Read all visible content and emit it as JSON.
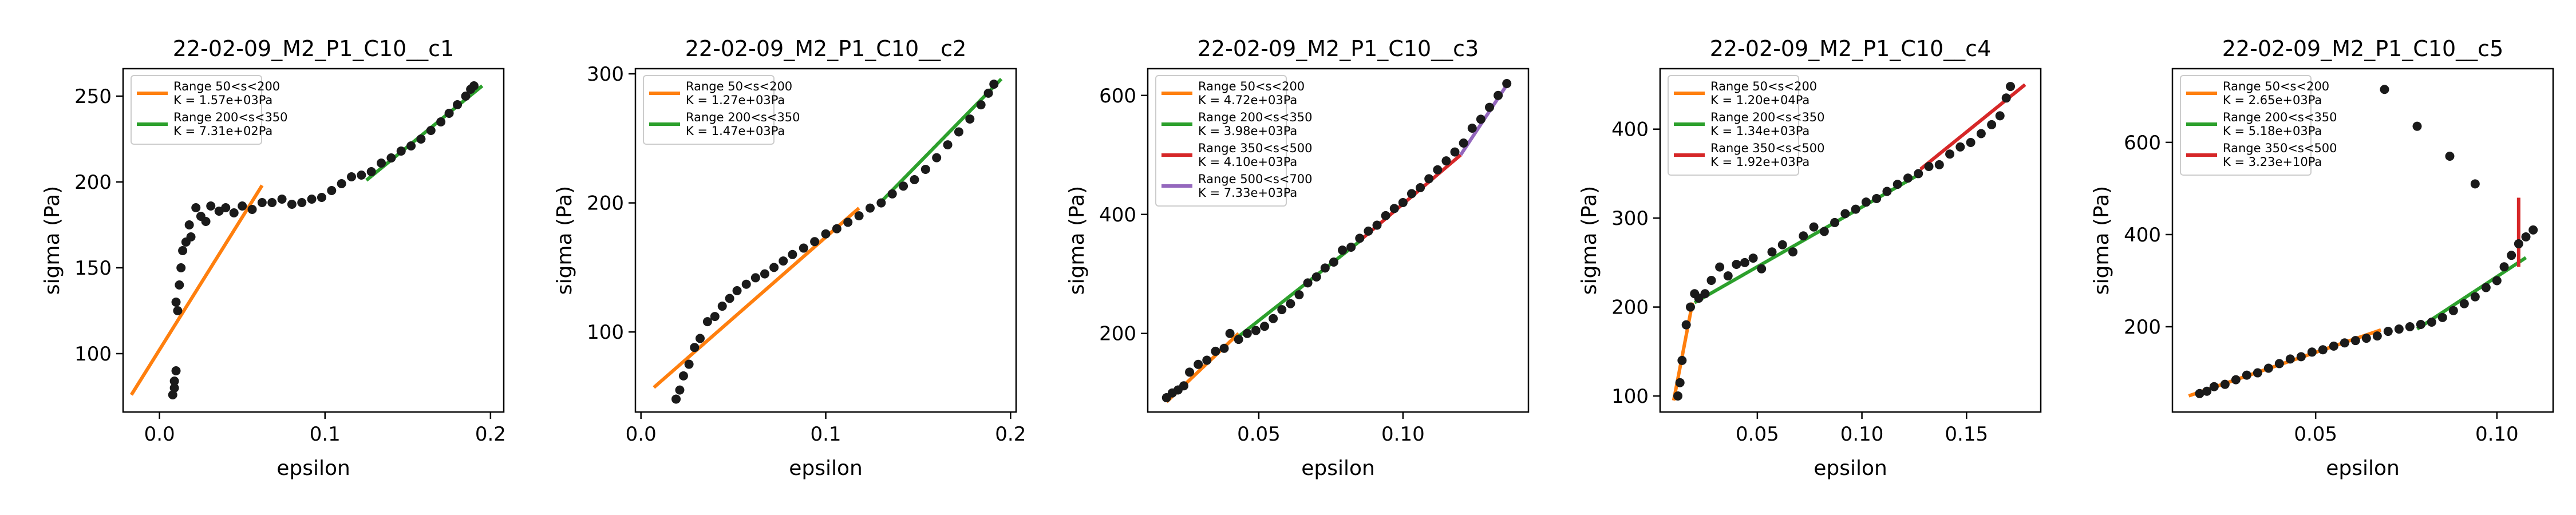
{
  "chart_data": [
    {
      "type": "scatter",
      "title": "22-02-09_M2_P1_C10__c1",
      "xlabel": "epsilon",
      "ylabel": "sigma (Pa)",
      "xlim": [
        -0.022,
        0.208
      ],
      "ylim": [
        66,
        266
      ],
      "xticks": [
        0,
        0.1,
        0.2
      ],
      "xtick_labels": [
        "0.0",
        "0.1",
        "0.2"
      ],
      "yticks": [
        100,
        150,
        200,
        250
      ],
      "ytick_labels": [
        "100",
        "150",
        "200",
        "250"
      ],
      "grid": false,
      "legend_placement": "top-left",
      "points": {
        "x": [
          0.008,
          0.009,
          0.009,
          0.01,
          0.011,
          0.01,
          0.012,
          0.013,
          0.014,
          0.016,
          0.018,
          0.019,
          0.022,
          0.025,
          0.028,
          0.031,
          0.036,
          0.04,
          0.045,
          0.05,
          0.056,
          0.062,
          0.068,
          0.074,
          0.08,
          0.086,
          0.092,
          0.098,
          0.104,
          0.11,
          0.116,
          0.122,
          0.128,
          0.134,
          0.14,
          0.146,
          0.152,
          0.158,
          0.164,
          0.17,
          0.175,
          0.18,
          0.185,
          0.188,
          0.19
        ],
        "y": [
          76,
          80,
          84,
          90,
          125,
          130,
          140,
          150,
          160,
          165,
          175,
          168,
          185,
          180,
          177,
          186,
          183,
          185,
          182,
          186,
          184,
          188,
          188,
          190,
          187,
          188,
          190,
          191,
          195,
          199,
          203,
          204,
          206,
          211,
          214,
          218,
          221,
          225,
          230,
          235,
          240,
          245,
          250,
          254,
          256
        ]
      },
      "fits": [
        {
          "name": "Range 50<s<200",
          "param": "K = 1.57e+03Pa",
          "color": "#ff7f0e",
          "x": [
            -0.017,
            0.062
          ],
          "y": [
            76,
            198
          ]
        },
        {
          "name": "Range 200<s<350",
          "param": "K = 7.31e+02Pa",
          "color": "#2ca02c",
          "x": [
            0.125,
            0.195
          ],
          "y": [
            201,
            256
          ]
        }
      ]
    },
    {
      "type": "scatter",
      "title": "22-02-09_M2_P1_C10__c2",
      "xlabel": "epsilon",
      "ylabel": "sigma (Pa)",
      "xlim": [
        -0.003,
        0.203
      ],
      "ylim": [
        38,
        304
      ],
      "xticks": [
        0,
        0.1,
        0.2
      ],
      "xtick_labels": [
        "0.0",
        "0.1",
        "0.2"
      ],
      "yticks": [
        100,
        200,
        300
      ],
      "ytick_labels": [
        "100",
        "200",
        "300"
      ],
      "grid": false,
      "legend_placement": "top-left",
      "points": {
        "x": [
          0.019,
          0.021,
          0.023,
          0.026,
          0.029,
          0.032,
          0.036,
          0.04,
          0.044,
          0.048,
          0.052,
          0.057,
          0.062,
          0.067,
          0.072,
          0.077,
          0.082,
          0.088,
          0.094,
          0.1,
          0.106,
          0.112,
          0.118,
          0.124,
          0.13,
          0.136,
          0.142,
          0.148,
          0.154,
          0.16,
          0.166,
          0.172,
          0.178,
          0.184,
          0.188,
          0.191
        ],
        "y": [
          48,
          55,
          66,
          75,
          88,
          95,
          108,
          112,
          120,
          126,
          132,
          137,
          142,
          145,
          150,
          155,
          160,
          165,
          170,
          176,
          180,
          185,
          190,
          196,
          200,
          207,
          213,
          218,
          226,
          235,
          245,
          255,
          265,
          276,
          285,
          292
        ]
      },
      "fits": [
        {
          "name": "Range 50<s<200",
          "param": "K = 1.27e+03Pa",
          "color": "#ff7f0e",
          "x": [
            0.007,
            0.118
          ],
          "y": [
            57,
            196
          ]
        },
        {
          "name": "Range 200<s<350",
          "param": "K = 1.47e+03Pa",
          "color": "#2ca02c",
          "x": [
            0.13,
            0.195
          ],
          "y": [
            201,
            296
          ]
        }
      ]
    },
    {
      "type": "scatter",
      "title": "22-02-09_M2_P1_C10__c3",
      "xlabel": "epsilon",
      "ylabel": "sigma (Pa)",
      "xlim": [
        0.0115,
        0.1435
      ],
      "ylim": [
        68,
        645
      ],
      "xticks": [
        0.05,
        0.1
      ],
      "xtick_labels": [
        "0.05",
        "0.10"
      ],
      "yticks": [
        200,
        400,
        600
      ],
      "ytick_labels": [
        "200",
        "400",
        "600"
      ],
      "grid": false,
      "legend_placement": "top-left",
      "points": {
        "x": [
          0.018,
          0.02,
          0.022,
          0.024,
          0.026,
          0.029,
          0.032,
          0.035,
          0.038,
          0.04,
          0.043,
          0.046,
          0.049,
          0.052,
          0.055,
          0.058,
          0.061,
          0.064,
          0.067,
          0.07,
          0.073,
          0.076,
          0.079,
          0.082,
          0.085,
          0.088,
          0.091,
          0.094,
          0.097,
          0.1,
          0.103,
          0.106,
          0.109,
          0.112,
          0.115,
          0.118,
          0.121,
          0.124,
          0.127,
          0.13,
          0.133,
          0.136
        ],
        "y": [
          92,
          100,
          105,
          112,
          135,
          148,
          155,
          170,
          175,
          200,
          190,
          200,
          205,
          212,
          225,
          240,
          250,
          265,
          285,
          295,
          310,
          320,
          340,
          345,
          360,
          372,
          382,
          398,
          410,
          420,
          435,
          445,
          460,
          475,
          490,
          505,
          520,
          545,
          560,
          580,
          600,
          620
        ]
      },
      "fits": [
        {
          "name": "Range 50<s<200",
          "param": "K = 4.72e+03Pa",
          "color": "#ff7f0e",
          "x": [
            0.018,
            0.043
          ],
          "y": [
            85,
            200
          ]
        },
        {
          "name": "Range 200<s<350",
          "param": "K = 3.98e+03Pa",
          "color": "#2ca02c",
          "x": [
            0.043,
            0.085
          ],
          "y": [
            195,
            355
          ]
        },
        {
          "name": "Range 350<s<500",
          "param": "K = 4.10e+03Pa",
          "color": "#d62728",
          "x": [
            0.086,
            0.12
          ],
          "y": [
            360,
            500
          ]
        },
        {
          "name": "Range 500<s<700",
          "param": "K = 7.33e+03Pa",
          "color": "#9467bd",
          "x": [
            0.12,
            0.137
          ],
          "y": [
            500,
            625
          ]
        }
      ]
    },
    {
      "type": "scatter",
      "title": "22-02-09_M2_P1_C10__c4",
      "xlabel": "epsilon",
      "ylabel": "sigma (Pa)",
      "xlim": [
        0.0035,
        0.1855
      ],
      "ylim": [
        82,
        468
      ],
      "xticks": [
        0.05,
        0.1,
        0.15
      ],
      "xtick_labels": [
        "0.05",
        "0.10",
        "0.15"
      ],
      "yticks": [
        100,
        200,
        300,
        400
      ],
      "ytick_labels": [
        "100",
        "200",
        "300",
        "400"
      ],
      "grid": false,
      "legend_placement": "top-left",
      "points": {
        "x": [
          0.012,
          0.013,
          0.014,
          0.016,
          0.018,
          0.02,
          0.022,
          0.025,
          0.028,
          0.032,
          0.036,
          0.04,
          0.044,
          0.048,
          0.052,
          0.057,
          0.062,
          0.067,
          0.072,
          0.077,
          0.082,
          0.087,
          0.092,
          0.097,
          0.102,
          0.107,
          0.112,
          0.117,
          0.122,
          0.127,
          0.132,
          0.137,
          0.142,
          0.147,
          0.152,
          0.157,
          0.162,
          0.166,
          0.169,
          0.171
        ],
        "y": [
          100,
          115,
          140,
          180,
          200,
          215,
          210,
          215,
          230,
          245,
          235,
          248,
          250,
          255,
          243,
          262,
          270,
          262,
          280,
          290,
          285,
          295,
          305,
          310,
          318,
          322,
          330,
          338,
          345,
          350,
          358,
          360,
          372,
          380,
          385,
          395,
          405,
          415,
          435,
          448
        ]
      },
      "fits": [
        {
          "name": "Range 50<s<200",
          "param": "K = 1.20e+04Pa",
          "color": "#ff7f0e",
          "x": [
            0.01,
            0.019
          ],
          "y": [
            95,
            205
          ]
        },
        {
          "name": "Range 200<s<350",
          "param": "K = 1.34e+03Pa",
          "color": "#2ca02c",
          "x": [
            0.02,
            0.128
          ],
          "y": [
            205,
            350
          ]
        },
        {
          "name": "Range 350<s<500",
          "param": "K = 1.92e+03Pa",
          "color": "#d62728",
          "x": [
            0.128,
            0.178
          ],
          "y": [
            355,
            450
          ]
        }
      ]
    },
    {
      "type": "scatter",
      "title": "22-02-09_M2_P1_C10__c5",
      "xlabel": "epsilon",
      "ylabel": "sigma (Pa)",
      "xlim": [
        0.0105,
        0.1155
      ],
      "ylim": [
        15,
        760
      ],
      "xticks": [
        0.05,
        0.1
      ],
      "xtick_labels": [
        "0.05",
        "0.10"
      ],
      "yticks": [
        200,
        400,
        600
      ],
      "ytick_labels": [
        "200",
        "400",
        "600"
      ],
      "grid": false,
      "legend_placement": "top-left",
      "points": {
        "x": [
          0.018,
          0.02,
          0.022,
          0.025,
          0.028,
          0.031,
          0.034,
          0.037,
          0.04,
          0.043,
          0.046,
          0.049,
          0.052,
          0.055,
          0.058,
          0.061,
          0.064,
          0.067,
          0.07,
          0.073,
          0.076,
          0.079,
          0.082,
          0.085,
          0.088,
          0.091,
          0.094,
          0.097,
          0.1,
          0.102,
          0.104,
          0.106,
          0.108,
          0.11,
          0.069,
          0.078,
          0.087,
          0.094
        ],
        "y": [
          55,
          60,
          70,
          75,
          85,
          95,
          100,
          110,
          120,
          130,
          135,
          145,
          150,
          158,
          165,
          170,
          175,
          180,
          190,
          195,
          200,
          205,
          210,
          220,
          235,
          250,
          265,
          285,
          300,
          330,
          355,
          380,
          395,
          410,
          715,
          635,
          570,
          510
        ]
      },
      "fits": [
        {
          "name": "Range 50<s<200",
          "param": "K = 2.65e+03Pa",
          "color": "#ff7f0e",
          "x": [
            0.015,
            0.068
          ],
          "y": [
            50,
            193
          ]
        },
        {
          "name": "Range 200<s<350",
          "param": "K = 5.18e+03Pa",
          "color": "#2ca02c",
          "x": [
            0.078,
            0.108
          ],
          "y": [
            195,
            350
          ]
        },
        {
          "name": "Range 350<s<500",
          "param": "K = 3.23e+10Pa",
          "color": "#d62728",
          "x": [
            0.106,
            0.106
          ],
          "y": [
            330,
            480
          ]
        }
      ]
    }
  ]
}
